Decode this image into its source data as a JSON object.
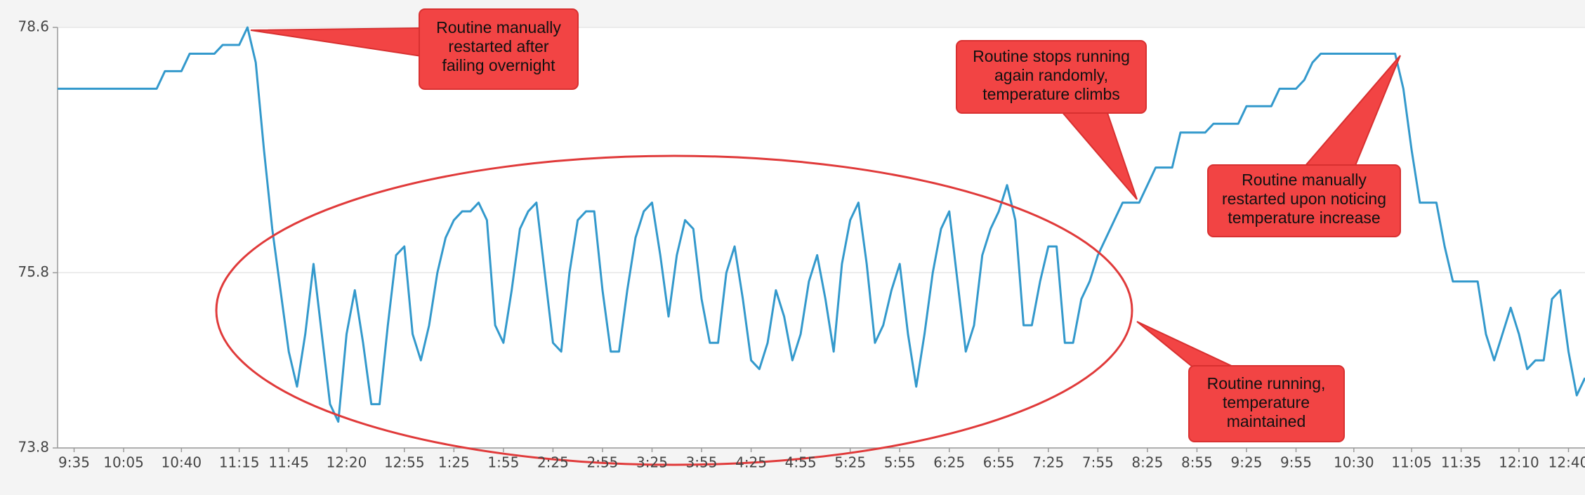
{
  "chart_data": {
    "type": "line",
    "x": [
      "9:25",
      "9:30",
      "9:35",
      "9:40",
      "9:45",
      "9:50",
      "9:55",
      "10:00",
      "10:05",
      "10:10",
      "10:15",
      "10:20",
      "10:25",
      "10:30",
      "10:35",
      "10:40",
      "10:45",
      "10:50",
      "10:55",
      "11:00",
      "11:05",
      "11:10",
      "11:15",
      "11:20",
      "11:25",
      "11:30",
      "11:35",
      "11:40",
      "11:45",
      "11:50",
      "11:55",
      "12:00",
      "12:05",
      "12:10",
      "12:15",
      "12:20",
      "12:25",
      "12:30",
      "12:35",
      "12:40",
      "12:45",
      "12:50",
      "12:55",
      "1:00",
      "1:05",
      "1:10",
      "1:15",
      "1:20",
      "1:25",
      "1:30",
      "1:35",
      "1:40",
      "1:45",
      "1:50",
      "1:55",
      "2:00",
      "2:05",
      "2:10",
      "2:15",
      "2:20",
      "2:25",
      "2:30",
      "2:35",
      "2:40",
      "2:45",
      "2:50",
      "2:55",
      "3:00",
      "3:05",
      "3:10",
      "3:15",
      "3:20",
      "3:25",
      "3:30",
      "3:35",
      "3:40",
      "3:45",
      "3:50",
      "3:55",
      "4:00",
      "4:05",
      "4:10",
      "4:15",
      "4:20",
      "4:25",
      "4:30",
      "4:35",
      "4:40",
      "4:45",
      "4:50",
      "4:55",
      "5:00",
      "5:05",
      "5:10",
      "5:15",
      "5:20",
      "5:25",
      "5:30",
      "5:35",
      "5:40",
      "5:45",
      "5:50",
      "5:55",
      "6:00",
      "6:05",
      "6:10",
      "6:15",
      "6:20",
      "6:25",
      "6:30",
      "6:35",
      "6:40",
      "6:45",
      "6:50",
      "6:55",
      "7:00",
      "7:05",
      "7:10",
      "7:15",
      "7:20",
      "7:25",
      "7:30",
      "7:35",
      "7:40",
      "7:45",
      "7:50",
      "7:55",
      "8:00",
      "8:05",
      "8:10",
      "8:15",
      "8:20",
      "8:25",
      "8:30",
      "8:35",
      "8:40",
      "8:45",
      "8:50",
      "8:55",
      "9:00",
      "9:05",
      "9:10",
      "9:15",
      "9:20",
      "9:25",
      "9:30",
      "9:35",
      "9:40",
      "9:45",
      "9:50",
      "9:55",
      "10:00",
      "10:05",
      "10:10",
      "10:15",
      "10:20",
      "10:25",
      "10:30",
      "10:35",
      "10:40",
      "10:45",
      "10:50",
      "10:55",
      "11:00",
      "11:05",
      "11:10",
      "11:15",
      "11:20",
      "11:25",
      "11:30",
      "11:35",
      "11:40",
      "11:45",
      "11:50",
      "11:55",
      "12:00",
      "12:05",
      "12:10",
      "12:15",
      "12:20",
      "12:25",
      "12:30",
      "12:35",
      "12:40",
      "12:45",
      "12:50"
    ],
    "values": [
      77.9,
      77.9,
      77.9,
      77.9,
      77.9,
      77.9,
      77.9,
      77.9,
      77.9,
      77.9,
      77.9,
      77.9,
      77.9,
      78.1,
      78.1,
      78.1,
      78.3,
      78.3,
      78.3,
      78.3,
      78.4,
      78.4,
      78.4,
      78.6,
      78.2,
      77.2,
      76.3,
      75.6,
      74.9,
      74.5,
      75.1,
      75.9,
      75.1,
      74.3,
      74.1,
      75.1,
      75.6,
      75.0,
      74.3,
      74.3,
      75.2,
      76.0,
      76.1,
      75.1,
      74.8,
      75.2,
      75.8,
      76.2,
      76.4,
      76.5,
      76.5,
      76.6,
      76.4,
      75.2,
      75.0,
      75.6,
      76.3,
      76.5,
      76.6,
      75.8,
      75.0,
      74.9,
      75.8,
      76.4,
      76.5,
      76.5,
      75.6,
      74.9,
      74.9,
      75.6,
      76.2,
      76.5,
      76.6,
      76.0,
      75.3,
      76.0,
      76.4,
      76.3,
      75.5,
      75.0,
      75.0,
      75.8,
      76.1,
      75.5,
      74.8,
      74.7,
      75.0,
      75.6,
      75.3,
      74.8,
      75.1,
      75.7,
      76.0,
      75.5,
      74.9,
      75.9,
      76.4,
      76.6,
      75.9,
      75.0,
      75.2,
      75.6,
      75.9,
      75.1,
      74.5,
      75.1,
      75.8,
      76.3,
      76.5,
      75.7,
      74.9,
      75.2,
      76.0,
      76.3,
      76.5,
      76.8,
      76.4,
      75.2,
      75.2,
      75.7,
      76.1,
      76.1,
      75.0,
      75.0,
      75.5,
      75.7,
      76.0,
      76.2,
      76.4,
      76.6,
      76.6,
      76.6,
      76.8,
      77.0,
      77.0,
      77.0,
      77.4,
      77.4,
      77.4,
      77.4,
      77.5,
      77.5,
      77.5,
      77.5,
      77.7,
      77.7,
      77.7,
      77.7,
      77.9,
      77.9,
      77.9,
      78.0,
      78.2,
      78.3,
      78.3,
      78.3,
      78.3,
      78.3,
      78.3,
      78.3,
      78.3,
      78.3,
      78.3,
      77.9,
      77.2,
      76.6,
      76.6,
      76.6,
      76.1,
      75.7,
      75.7,
      75.7,
      75.7,
      75.1,
      74.8,
      75.1,
      75.4,
      75.1,
      74.7,
      74.8,
      74.8,
      75.5,
      75.6,
      74.9,
      74.4,
      74.6
    ],
    "color": "#3399cc",
    "ylim": [
      73.8,
      78.6
    ],
    "yticks": [
      73.8,
      75.8,
      78.6
    ],
    "xticks": [
      "9:35",
      "10:05",
      "10:40",
      "11:15",
      "11:45",
      "12:20",
      "12:55",
      "1:25",
      "1:55",
      "2:25",
      "2:55",
      "3:25",
      "3:55",
      "4:25",
      "4:55",
      "5:25",
      "5:55",
      "6:25",
      "6:55",
      "7:25",
      "7:55",
      "8:25",
      "8:55",
      "9:25",
      "9:55",
      "10:30",
      "11:05",
      "11:35",
      "12:10",
      "12:40"
    ],
    "grid": true,
    "annotations": [
      {
        "lines": [
          "Routine manually",
          "restarted after",
          "failing overnight"
        ]
      },
      {
        "lines": [
          "Routine stops running",
          "again randomly,",
          "temperature climbs"
        ]
      },
      {
        "lines": [
          "Routine manually",
          "restarted upon noticing",
          "temperature increase"
        ]
      },
      {
        "lines": [
          "Routine running,",
          "temperature",
          "maintained"
        ]
      }
    ]
  }
}
